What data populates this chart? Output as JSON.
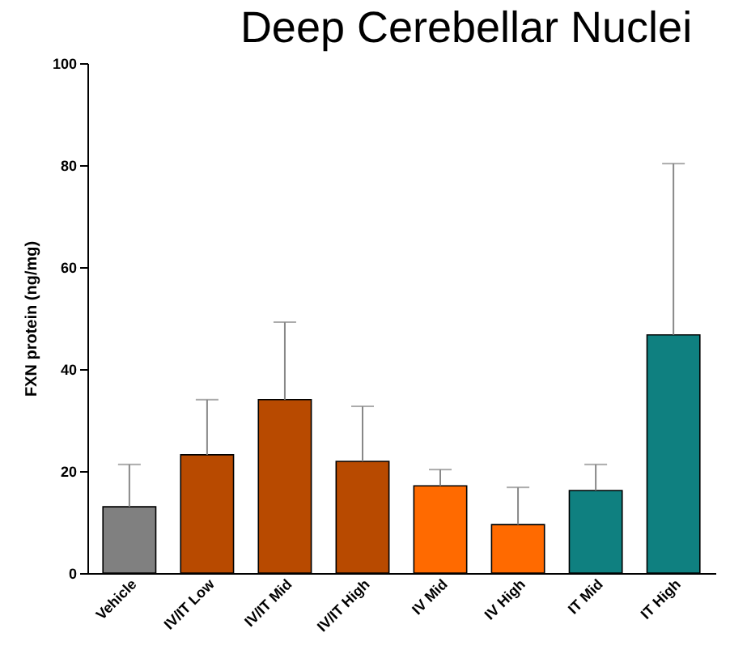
{
  "chart_data": {
    "type": "bar",
    "title": "Deep Cerebellar Nuclei",
    "ylabel": "FXN protein (ng/mg)",
    "categories": [
      "Vehicle",
      "IV/IT Low",
      "IV/IT Mid",
      "IV/IT High",
      "IV Mid",
      "IV High",
      "IT Mid",
      "IT High"
    ],
    "values": [
      13.0,
      23.2,
      34.0,
      21.9,
      17.1,
      9.5,
      16.2,
      46.7
    ],
    "errors": [
      [
        13.0,
        21.3
      ],
      [
        23.2,
        34.0
      ],
      [
        34.0,
        49.2
      ],
      [
        21.9,
        32.7
      ],
      [
        17.1,
        20.3
      ],
      [
        9.5,
        16.8
      ],
      [
        16.2,
        21.3
      ],
      [
        46.7,
        80.3
      ]
    ],
    "colors": [
      "#808080",
      "#b84a00",
      "#b84a00",
      "#b84a00",
      "#ff6a00",
      "#ff6a00",
      "#0f8080",
      "#0f8080"
    ],
    "ylim": [
      0,
      100
    ],
    "yticks": [
      0,
      20,
      40,
      60,
      80,
      100
    ],
    "grid": false
  }
}
